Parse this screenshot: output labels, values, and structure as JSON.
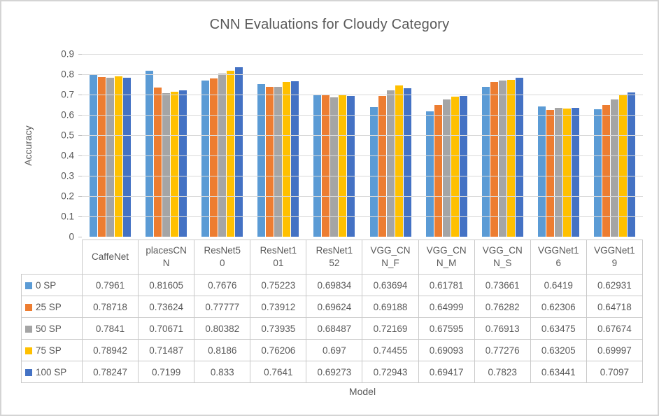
{
  "chart_data": {
    "type": "bar",
    "title": "CNN Evaluations for Cloudy Category",
    "xlabel": "Model",
    "ylabel": "Accuracy",
    "ylim": [
      0,
      0.9
    ],
    "grid": true,
    "legend_position": "table-left",
    "yticks": [
      "0.9",
      "0.8",
      "0.7",
      "0.6",
      "0.5",
      "0.4",
      "0.3",
      "0.2",
      "0.1",
      "0"
    ],
    "categories": [
      "CaffeNet",
      "placesCNN",
      "ResNet50",
      "ResNet101",
      "ResNet152",
      "VGG_CNN_F",
      "VGG_CNN_M",
      "VGG_CNN_S",
      "VGGNet16",
      "VGGNet19"
    ],
    "series": [
      {
        "name": "0 SP",
        "color": "#5B9BD5",
        "values": [
          0.7961,
          0.81605,
          0.7676,
          0.75223,
          0.69834,
          0.63694,
          0.61781,
          0.73661,
          0.6419,
          0.62931
        ]
      },
      {
        "name": "25 SP",
        "color": "#ED7D31",
        "values": [
          0.78718,
          0.73624,
          0.77777,
          0.73912,
          0.69624,
          0.69188,
          0.64999,
          0.76282,
          0.62306,
          0.64718
        ]
      },
      {
        "name": "50 SP",
        "color": "#A5A5A5",
        "values": [
          0.7841,
          0.70671,
          0.80382,
          0.73935,
          0.68487,
          0.72169,
          0.67595,
          0.76913,
          0.63475,
          0.67674
        ]
      },
      {
        "name": "75 SP",
        "color": "#FFC000",
        "values": [
          0.78942,
          0.71487,
          0.8186,
          0.76206,
          0.697,
          0.74455,
          0.69093,
          0.77276,
          0.63205,
          0.69997
        ]
      },
      {
        "name": "100 SP",
        "color": "#4472C4",
        "values": [
          0.78247,
          0.7199,
          0.833,
          0.7641,
          0.69273,
          0.72943,
          0.69417,
          0.7823,
          0.63441,
          0.7097
        ]
      }
    ],
    "colors": {
      "gridline": "#D9D9D9",
      "tick": "#BFBFBF",
      "text": "#595959",
      "table_border": "#C9C9C9"
    }
  }
}
